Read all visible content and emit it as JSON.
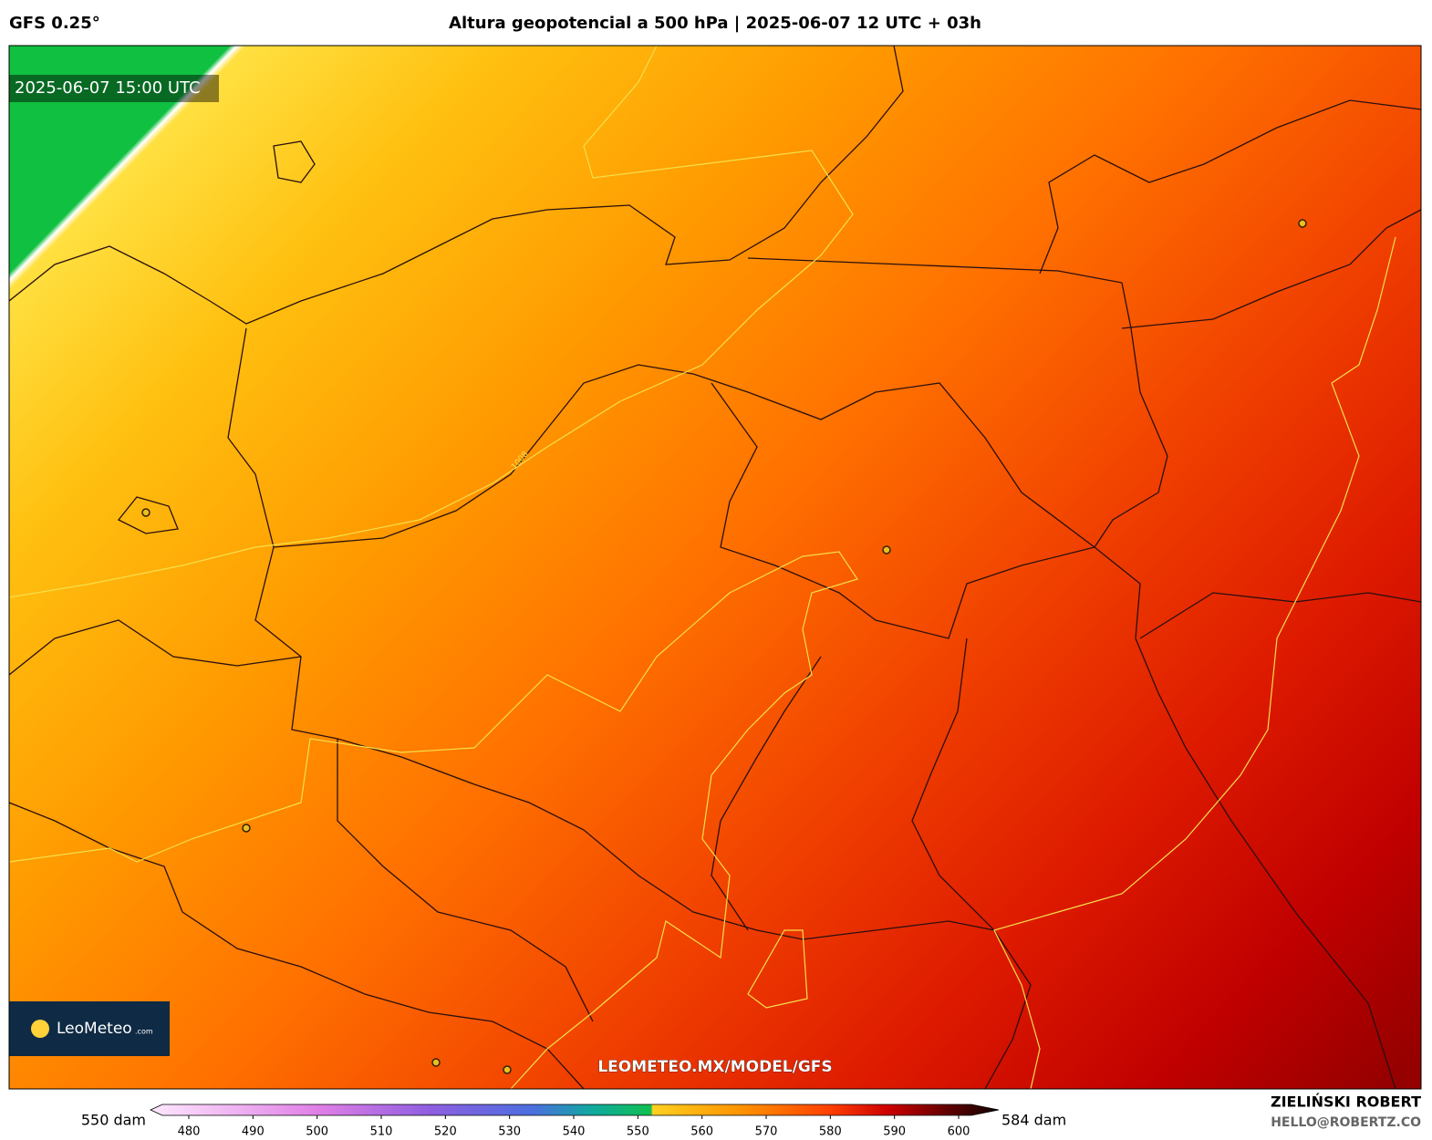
{
  "header": {
    "model": "GFS 0.25°",
    "title": "Altura geopotencial a 500 hPa | 2025-06-07 12 UTC + 03h"
  },
  "map": {
    "valid_time": "2025-06-07 15:00 UTC",
    "watermark": "LEOMETEO.MX/MODEL/GFS",
    "isobar_label": "1008",
    "logo": {
      "name": "LeoMeteo",
      "suffix": ".com"
    }
  },
  "colorbar": {
    "min_label": "550 dam",
    "max_label": "584 dam",
    "ticks": [
      480,
      490,
      500,
      510,
      520,
      530,
      540,
      550,
      560,
      570,
      580,
      590,
      600
    ]
  },
  "footer": {
    "author": "ZIELIŃSKI ROBERT",
    "email": "HELLO@ROBERTZ.CO"
  }
}
